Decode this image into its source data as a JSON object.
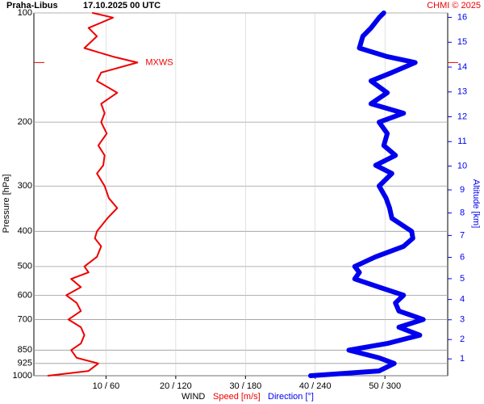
{
  "chart_data": {
    "type": "sounding",
    "station": "Praha-Libus",
    "title": "17.10.2025 00 UTC",
    "credit": "CHMI © 2025",
    "ylabel": "Pressure [hPa]",
    "y2label": "Altitude [km]",
    "xlabel": "WIND",
    "annotation": "MXWS",
    "ylog": true,
    "grid": true,
    "ylim": [
      100,
      1000
    ],
    "yticks": [
      100,
      200,
      300,
      400,
      500,
      600,
      700,
      850,
      925,
      1000
    ],
    "xlim": [
      0,
      59
    ],
    "xticks": [
      {
        "value": 10,
        "label": "10 / 60"
      },
      {
        "value": 20,
        "label": "20 / 120"
      },
      {
        "value": 30,
        "label": "30 / 180"
      },
      {
        "value": 40,
        "label": "40 / 240"
      },
      {
        "value": 50,
        "label": "50 / 300"
      }
    ],
    "x2lim": [
      0,
      354
    ],
    "y2ticks": [
      1,
      2,
      3,
      4,
      5,
      6,
      7,
      8,
      9,
      10,
      11,
      12,
      13,
      14,
      15,
      16
    ],
    "y2color": "#0000ee",
    "pressure": [
      1000,
      970,
      925,
      893,
      850,
      815,
      773,
      735,
      700,
      663,
      630,
      600,
      570,
      541,
      519,
      500,
      470,
      440,
      418,
      400,
      368,
      345,
      324,
      300,
      277,
      263,
      247,
      232,
      215,
      200,
      189,
      178,
      166,
      154,
      146,
      137,
      132,
      125,
      116,
      110,
      103,
      100
    ],
    "series": [
      {
        "name": "Speed [m/s]",
        "color": "#ee0000",
        "axis": "x",
        "values": [
          1.7,
          7.5,
          8.9,
          5.8,
          5.0,
          6.4,
          6.9,
          6.4,
          4.6,
          6.4,
          5.8,
          4.3,
          6.4,
          5.0,
          7.5,
          6.9,
          8.7,
          9.3,
          8.4,
          8.7,
          10.2,
          11.6,
          10.4,
          9.8,
          8.7,
          9.6,
          9.8,
          8.9,
          10.1,
          9.3,
          9.8,
          9.3,
          11.6,
          8.7,
          9.3,
          14.5,
          11.0,
          6.9,
          8.7,
          7.5,
          11.0,
          8.1
        ]
      },
      {
        "name": "Direction [°]",
        "color": "#0000ee",
        "axis": "x2",
        "values": [
          236,
          295,
          308,
          295,
          269,
          302,
          330,
          312,
          333,
          312,
          309,
          316,
          295,
          274,
          278,
          274,
          292,
          316,
          324,
          323,
          306,
          304,
          301,
          295,
          306,
          292,
          309,
          299,
          302,
          295,
          316,
          288,
          302,
          288,
          306,
          326,
          302,
          278,
          281,
          288,
          295,
          299
        ]
      }
    ]
  }
}
